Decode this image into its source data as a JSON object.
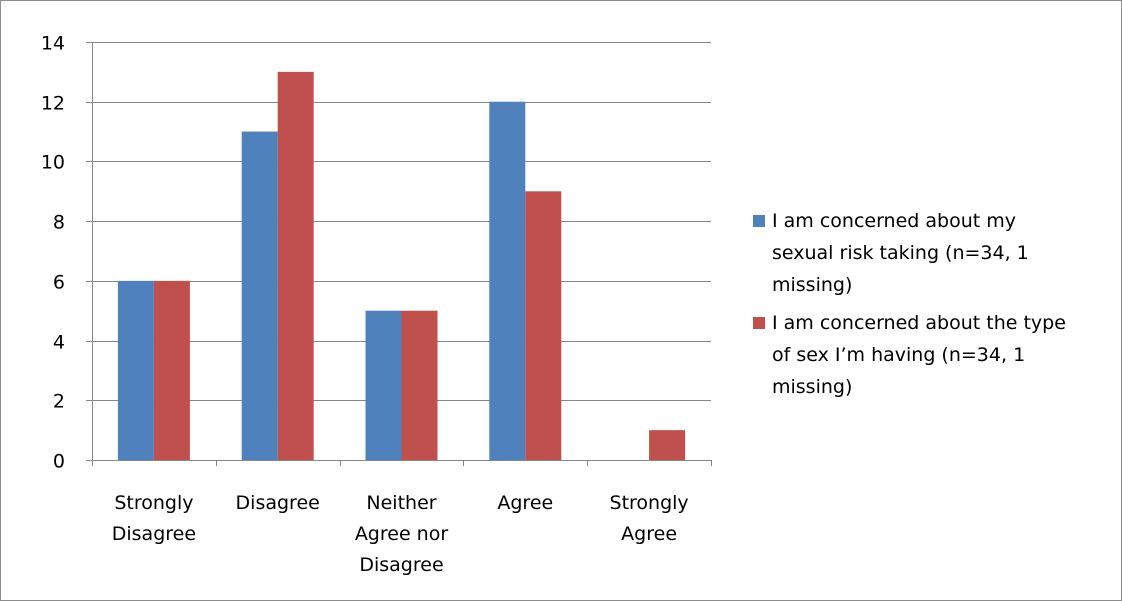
{
  "chart_data": {
    "type": "bar",
    "categories": [
      [
        "Strongly",
        "Disagree"
      ],
      [
        "Disagree"
      ],
      [
        "Neither",
        "Agree nor",
        "Disagree"
      ],
      [
        "Agree"
      ],
      [
        "Strongly",
        "Agree"
      ]
    ],
    "series": [
      {
        "name": "I am concerned about my sexual risk taking (n=34, 1 missing)",
        "name_lines": [
          "I am concerned about my",
          "sexual risk taking (n=34, 1",
          "missing)"
        ],
        "color": "#4f81bd",
        "values": [
          6,
          11,
          5,
          12,
          0
        ]
      },
      {
        "name": "I am concerned about the type of sex I’m having (n=34, 1 missing)",
        "name_lines": [
          "I am concerned about the type",
          "of sex I’m having (n=34, 1",
          "missing)"
        ],
        "color": "#c0504d",
        "values": [
          6,
          13,
          5,
          9,
          1
        ]
      }
    ],
    "ylim": [
      0,
      14
    ],
    "yticks": [
      "0",
      "2",
      "4",
      "6",
      "8",
      "10",
      "12",
      "14"
    ],
    "grid": true,
    "legend_position": "right"
  }
}
